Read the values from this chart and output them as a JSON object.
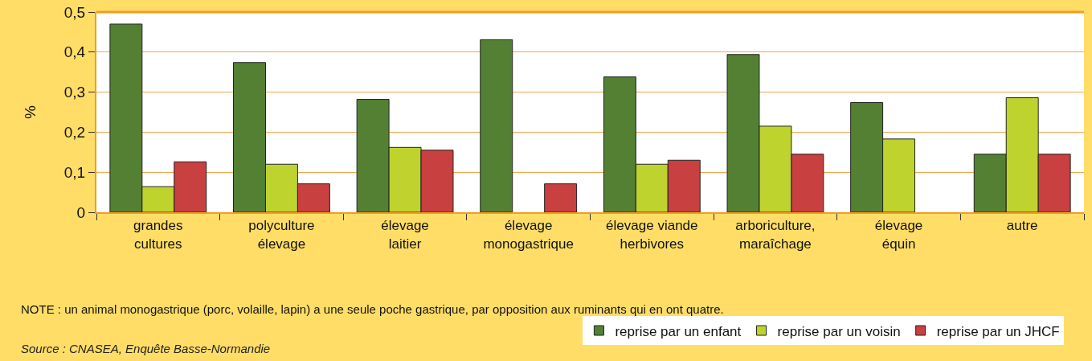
{
  "chart_data": {
    "type": "bar",
    "ylabel": "%",
    "categories": [
      "grandes cultures",
      "polyculture élevage",
      "élevage laitier",
      "élevage monogastrique",
      "élevage viande herbivores",
      "arboriculture, maraîchage",
      "élevage équin",
      "autre"
    ],
    "series": [
      {
        "name": "reprise par un enfant",
        "color": "#548033",
        "values": [
          0.47,
          0.374,
          0.282,
          0.431,
          0.338,
          0.394,
          0.274,
          0.145
        ]
      },
      {
        "name": "reprise par un voisin",
        "color": "#bfd32f",
        "values": [
          0.064,
          0.12,
          0.162,
          null,
          0.12,
          0.215,
          0.183,
          0.286
        ]
      },
      {
        "name": "reprise par un JHCF",
        "color": "#c84040",
        "values": [
          0.126,
          0.071,
          0.155,
          0.071,
          0.13,
          0.145,
          null,
          0.145
        ]
      }
    ],
    "ylim": [
      0,
      0.5
    ],
    "yticks": [
      {
        "value": 0,
        "label": "0"
      },
      {
        "value": 0.1,
        "label": "0,1"
      },
      {
        "value": 0.2,
        "label": "0,2"
      },
      {
        "value": 0.3,
        "label": "0,3"
      },
      {
        "value": 0.4,
        "label": "0,4"
      },
      {
        "value": 0.5,
        "label": "0,5"
      }
    ],
    "grid": "y",
    "legend": "bottom",
    "annotations": [
      "NOTE : un animal monogastrique (porc, volaille, lapin) a une seule poche gastrique, par opposition aux ruminants qui en ont quatre.",
      "Source : CNASEA, Enquête Basse-Normandie"
    ]
  }
}
